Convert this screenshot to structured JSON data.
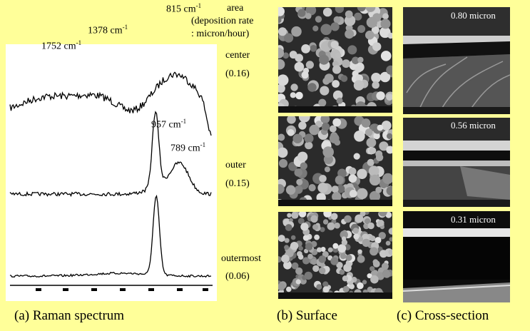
{
  "spectrum": {
    "peaks": [
      {
        "value": "815",
        "unit": "cm",
        "exp": "-1"
      },
      {
        "value": "1378",
        "unit": "cm",
        "exp": "-1"
      },
      {
        "value": "1752",
        "unit": "cm",
        "exp": "-1"
      },
      {
        "value": "957",
        "unit": "cm",
        "exp": "-1"
      },
      {
        "value": "789",
        "unit": "cm",
        "exp": "-1"
      }
    ]
  },
  "legend": {
    "line1": "area",
    "line2": "(deposition rate",
    "line3": ": micron/hour)"
  },
  "samples": [
    {
      "name": "center",
      "rate": "(0.16)",
      "thickness": "0.80 micron"
    },
    {
      "name": "outer",
      "rate": "(0.15)",
      "thickness": "0.56 micron"
    },
    {
      "name": "outermost",
      "rate": "(0.06)",
      "thickness": "0.31 micron"
    }
  ],
  "captions": {
    "a": "(a) Raman spectrum",
    "b": "(b) Surface",
    "c": "(c) Cross-section"
  }
}
